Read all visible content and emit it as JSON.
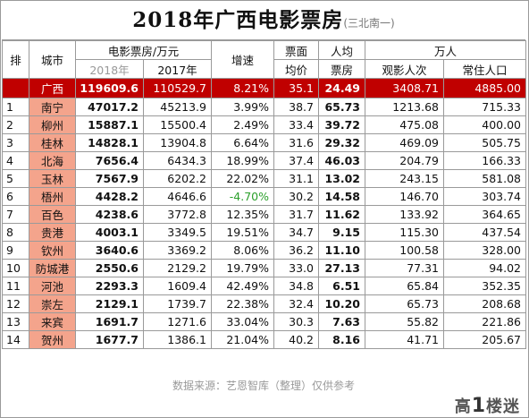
{
  "title": {
    "main": "2018年广西电影票房",
    "sub": "(三北南一)"
  },
  "headers": {
    "rank": "排",
    "city": "城市",
    "box_office": "电影票房/万元",
    "y2018": "2018年",
    "y2017": "2017年",
    "growth": "增速",
    "avg_price_top": "票面",
    "avg_price_bottom": "均价",
    "per_capita_top": "人均",
    "per_capita_bottom": "票房",
    "wan_ren": "万人",
    "audience": "观影人次",
    "population": "常住人口"
  },
  "summary": {
    "city": "广西",
    "y2018": "119609.6",
    "y2017": "110529.7",
    "growth": "8.21%",
    "avg_price": "35.1",
    "per_capita": "24.49",
    "audience": "3408.71",
    "population": "4885.00"
  },
  "rows": [
    {
      "rank": "1",
      "city": "南宁",
      "y2018": "47017.2",
      "y2017": "45213.9",
      "growth": "3.99%",
      "avg_price": "38.7",
      "per_capita": "65.73",
      "audience": "1213.68",
      "population": "715.33"
    },
    {
      "rank": "2",
      "city": "柳州",
      "y2018": "15887.1",
      "y2017": "15500.4",
      "growth": "2.49%",
      "avg_price": "33.4",
      "per_capita": "39.72",
      "audience": "475.08",
      "population": "400.00"
    },
    {
      "rank": "3",
      "city": "桂林",
      "y2018": "14828.1",
      "y2017": "13904.8",
      "growth": "6.64%",
      "avg_price": "31.6",
      "per_capita": "29.32",
      "audience": "469.09",
      "population": "505.75"
    },
    {
      "rank": "4",
      "city": "北海",
      "y2018": "7656.4",
      "y2017": "6434.3",
      "growth": "18.99%",
      "avg_price": "37.4",
      "per_capita": "46.03",
      "audience": "204.79",
      "population": "166.33"
    },
    {
      "rank": "5",
      "city": "玉林",
      "y2018": "7567.9",
      "y2017": "6202.2",
      "growth": "22.02%",
      "avg_price": "31.1",
      "per_capita": "13.02",
      "audience": "243.15",
      "population": "581.08"
    },
    {
      "rank": "6",
      "city": "梧州",
      "y2018": "4428.2",
      "y2017": "4646.6",
      "growth": "-4.70%",
      "avg_price": "30.2",
      "per_capita": "14.58",
      "audience": "146.70",
      "population": "303.74"
    },
    {
      "rank": "7",
      "city": "百色",
      "y2018": "4238.6",
      "y2017": "3772.8",
      "growth": "12.35%",
      "avg_price": "31.7",
      "per_capita": "11.62",
      "audience": "133.92",
      "population": "364.65"
    },
    {
      "rank": "8",
      "city": "贵港",
      "y2018": "4003.1",
      "y2017": "3349.5",
      "growth": "19.51%",
      "avg_price": "34.7",
      "per_capita": "9.15",
      "audience": "115.30",
      "population": "437.54"
    },
    {
      "rank": "9",
      "city": "钦州",
      "y2018": "3640.6",
      "y2017": "3369.2",
      "growth": "8.06%",
      "avg_price": "36.2",
      "per_capita": "11.10",
      "audience": "100.58",
      "population": "328.00"
    },
    {
      "rank": "10",
      "city": "防城港",
      "y2018": "2550.6",
      "y2017": "2129.2",
      "growth": "19.79%",
      "avg_price": "33.0",
      "per_capita": "27.13",
      "audience": "77.31",
      "population": "94.02"
    },
    {
      "rank": "11",
      "city": "河池",
      "y2018": "2293.3",
      "y2017": "1609.4",
      "growth": "42.49%",
      "avg_price": "34.8",
      "per_capita": "6.51",
      "audience": "65.84",
      "population": "352.35"
    },
    {
      "rank": "12",
      "city": "崇左",
      "y2018": "2129.1",
      "y2017": "1739.7",
      "growth": "22.38%",
      "avg_price": "32.4",
      "per_capita": "10.20",
      "audience": "65.73",
      "population": "208.68"
    },
    {
      "rank": "13",
      "city": "来宾",
      "y2018": "1691.7",
      "y2017": "1271.6",
      "growth": "33.04%",
      "avg_price": "30.3",
      "per_capita": "7.63",
      "audience": "55.82",
      "population": "221.86"
    },
    {
      "rank": "14",
      "city": "贺州",
      "y2018": "1677.7",
      "y2017": "1386.1",
      "growth": "21.04%",
      "avg_price": "40.2",
      "per_capita": "8.16",
      "audience": "41.71",
      "population": "205.67"
    }
  ],
  "footer": "数据来源：艺恩智库（整理）仅供参考",
  "logo": {
    "prefix": "高",
    "one": "1",
    "suffix": "楼迷"
  },
  "colors": {
    "summary_bg": "#c00000",
    "city_bg": "#f4a48c",
    "negative": "#2ca02c"
  }
}
